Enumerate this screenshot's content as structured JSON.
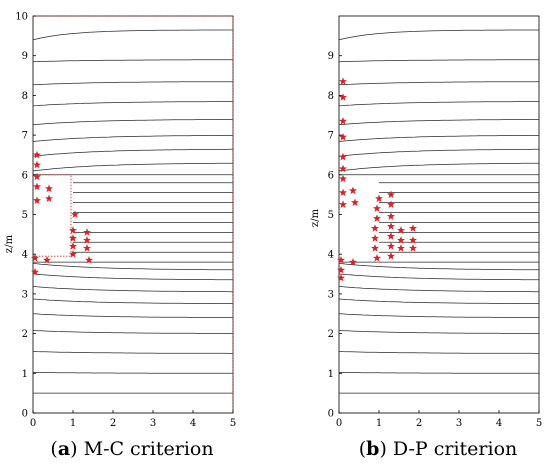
{
  "panels": [
    {
      "id": "a",
      "caption_letter": "a",
      "caption_text": "M-C criterion",
      "xlabel": "",
      "ylabel": "z/m",
      "xlim": [
        0,
        5
      ],
      "ylim": [
        0,
        10
      ],
      "x_ticks": [
        "0",
        "1",
        "2",
        "3",
        "4",
        "5"
      ],
      "y_ticks": [
        "0",
        "1",
        "2",
        "3",
        "4",
        "5",
        "6",
        "7",
        "8",
        "9",
        "10"
      ],
      "marker": "red star (plastic zone)",
      "plastic_points": [
        [
          0.1,
          6.5
        ],
        [
          0.1,
          6.25
        ],
        [
          0.1,
          5.95
        ],
        [
          0.1,
          5.7
        ],
        [
          0.1,
          5.35
        ],
        [
          0.4,
          5.65
        ],
        [
          0.4,
          5.4
        ],
        [
          0.05,
          3.9
        ],
        [
          0.05,
          3.55
        ],
        [
          0.35,
          3.85
        ],
        [
          1.05,
          5.0
        ],
        [
          1.0,
          4.6
        ],
        [
          1.0,
          4.4
        ],
        [
          1.0,
          4.2
        ],
        [
          1.0,
          4.0
        ],
        [
          1.35,
          4.55
        ],
        [
          1.35,
          4.35
        ],
        [
          1.35,
          4.15
        ],
        [
          1.4,
          3.85
        ]
      ]
    },
    {
      "id": "b",
      "caption_letter": "b",
      "caption_text": "D-P criterion",
      "xlabel": "",
      "ylabel": "z/m",
      "xlim": [
        0,
        5
      ],
      "ylim": [
        0,
        10
      ],
      "x_ticks": [
        "0",
        "1",
        "2",
        "3",
        "4",
        "5"
      ],
      "y_ticks": [
        "0",
        "1",
        "2",
        "3",
        "4",
        "5",
        "6",
        "7",
        "8",
        "9"
      ],
      "marker": "red star (plastic zone)",
      "plastic_points": [
        [
          0.1,
          8.35
        ],
        [
          0.1,
          7.95
        ],
        [
          0.1,
          7.35
        ],
        [
          0.1,
          6.95
        ],
        [
          0.1,
          6.45
        ],
        [
          0.1,
          6.15
        ],
        [
          0.1,
          5.9
        ],
        [
          0.1,
          5.55
        ],
        [
          0.1,
          5.25
        ],
        [
          0.35,
          5.6
        ],
        [
          0.4,
          5.3
        ],
        [
          0.05,
          3.85
        ],
        [
          0.05,
          3.6
        ],
        [
          0.05,
          3.4
        ],
        [
          0.35,
          3.8
        ],
        [
          1.0,
          5.4
        ],
        [
          0.95,
          5.15
        ],
        [
          0.95,
          4.9
        ],
        [
          0.9,
          4.65
        ],
        [
          0.9,
          4.4
        ],
        [
          0.9,
          4.15
        ],
        [
          0.95,
          3.9
        ],
        [
          1.3,
          5.5
        ],
        [
          1.3,
          5.25
        ],
        [
          1.3,
          4.95
        ],
        [
          1.3,
          4.7
        ],
        [
          1.3,
          4.45
        ],
        [
          1.3,
          4.2
        ],
        [
          1.3,
          3.95
        ],
        [
          1.55,
          4.6
        ],
        [
          1.55,
          4.35
        ],
        [
          1.55,
          4.15
        ],
        [
          1.85,
          4.65
        ],
        [
          1.85,
          4.35
        ],
        [
          1.85,
          4.15
        ]
      ]
    }
  ],
  "colors": {
    "mesh": "#2b2b2b",
    "star": "#d8232a",
    "dotted_outline": "#c0392b"
  }
}
